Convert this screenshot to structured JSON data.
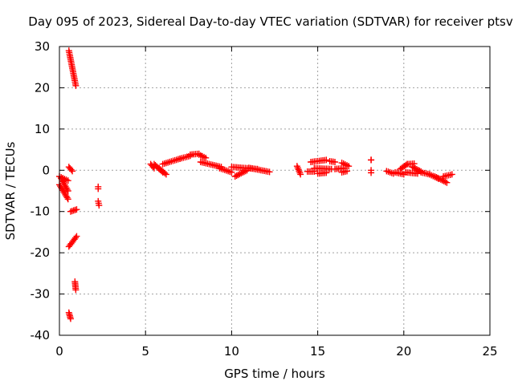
{
  "chart_data": {
    "type": "scatter",
    "title": "Day 095 of 2023, Sidereal Day-to-day VTEC variation (SDTVAR) for receiver ptsv",
    "xlabel": "GPS time / hours",
    "ylabel": "SDTVAR / TECUs",
    "xlim": [
      0,
      25
    ],
    "ylim": [
      -40,
      30
    ],
    "xticks": [
      0,
      5,
      10,
      15,
      20,
      25
    ],
    "yticks": [
      -40,
      -30,
      -20,
      -10,
      0,
      10,
      20,
      30
    ],
    "grid": true,
    "marker": "plus",
    "color": "#ff0000",
    "segments": [
      {
        "from": [
          0.55,
          29.0
        ],
        "to": [
          0.95,
          20.5
        ]
      },
      {
        "from": [
          0.0,
          -1.5
        ],
        "to": [
          0.5,
          -2.5
        ]
      },
      {
        "from": [
          0.0,
          -3.5
        ],
        "to": [
          0.5,
          -7.0
        ]
      },
      {
        "from": [
          0.1,
          -2.0
        ],
        "to": [
          0.5,
          -5.0
        ]
      },
      {
        "from": [
          0.55,
          0.8
        ],
        "to": [
          0.75,
          -0.2
        ]
      },
      {
        "from": [
          0.65,
          -10.0
        ],
        "to": [
          1.0,
          -9.5
        ]
      },
      {
        "from": [
          0.55,
          -18.5
        ],
        "to": [
          1.0,
          -16.0
        ]
      },
      {
        "from": [
          0.9,
          -27.0
        ],
        "to": [
          0.95,
          -29.0
        ]
      },
      {
        "from": [
          0.55,
          -34.5
        ],
        "to": [
          0.65,
          -36.0
        ]
      },
      {
        "from": [
          2.25,
          -4.0
        ],
        "to": [
          2.25,
          -4.5
        ]
      },
      {
        "from": [
          2.25,
          -7.5
        ],
        "to": [
          2.3,
          -8.5
        ]
      },
      {
        "from": [
          5.3,
          1.5
        ],
        "to": [
          5.5,
          0.5
        ]
      },
      {
        "from": [
          5.5,
          1.5
        ],
        "to": [
          6.0,
          -0.5
        ]
      },
      {
        "from": [
          5.8,
          0.5
        ],
        "to": [
          6.2,
          -1.0
        ]
      },
      {
        "from": [
          6.0,
          1.5
        ],
        "to": [
          7.0,
          2.8
        ]
      },
      {
        "from": [
          7.0,
          2.8
        ],
        "to": [
          7.6,
          3.5
        ]
      },
      {
        "from": [
          7.6,
          3.8
        ],
        "to": [
          8.1,
          4.0
        ]
      },
      {
        "from": [
          8.1,
          3.8
        ],
        "to": [
          8.5,
          3.0
        ]
      },
      {
        "from": [
          8.2,
          2.0
        ],
        "to": [
          9.4,
          0.8
        ]
      },
      {
        "from": [
          9.3,
          0.5
        ],
        "to": [
          10.0,
          -0.5
        ]
      },
      {
        "from": [
          10.0,
          0.8
        ],
        "to": [
          11.5,
          0.3
        ]
      },
      {
        "from": [
          10.2,
          -1.5
        ],
        "to": [
          10.9,
          0.0
        ]
      },
      {
        "from": [
          11.0,
          0.6
        ],
        "to": [
          12.2,
          -0.4
        ]
      },
      {
        "from": [
          13.8,
          1.0
        ],
        "to": [
          14.0,
          -1.0
        ]
      },
      {
        "from": [
          14.4,
          -0.3
        ],
        "to": [
          14.8,
          -0.3
        ]
      },
      {
        "from": [
          14.6,
          2.0
        ],
        "to": [
          15.5,
          2.5
        ]
      },
      {
        "from": [
          14.8,
          0.5
        ],
        "to": [
          15.8,
          0.3
        ]
      },
      {
        "from": [
          15.0,
          -0.8
        ],
        "to": [
          15.5,
          -0.6
        ]
      },
      {
        "from": [
          15.7,
          2.2
        ],
        "to": [
          16.0,
          2.0
        ]
      },
      {
        "from": [
          16.0,
          0.3
        ],
        "to": [
          16.5,
          0.5
        ]
      },
      {
        "from": [
          16.4,
          1.8
        ],
        "to": [
          16.8,
          1.0
        ]
      },
      {
        "from": [
          16.4,
          -0.5
        ],
        "to": [
          16.7,
          -0.2
        ]
      },
      {
        "from": [
          18.1,
          2.5
        ],
        "to": [
          18.1,
          2.5
        ]
      },
      {
        "from": [
          18.1,
          0.0
        ],
        "to": [
          18.1,
          -0.6
        ]
      },
      {
        "from": [
          19.0,
          -0.2
        ],
        "to": [
          19.4,
          -0.8
        ]
      },
      {
        "from": [
          19.5,
          -0.5
        ],
        "to": [
          20.0,
          -1.0
        ]
      },
      {
        "from": [
          19.8,
          0.3
        ],
        "to": [
          20.2,
          1.5
        ]
      },
      {
        "from": [
          20.2,
          1.5
        ],
        "to": [
          20.6,
          1.6
        ]
      },
      {
        "from": [
          20.1,
          -0.5
        ],
        "to": [
          20.8,
          -0.8
        ]
      },
      {
        "from": [
          20.5,
          0.8
        ],
        "to": [
          21.0,
          -0.3
        ]
      },
      {
        "from": [
          21.0,
          -0.5
        ],
        "to": [
          21.5,
          -1.0
        ]
      },
      {
        "from": [
          21.5,
          -1.0
        ],
        "to": [
          22.0,
          -2.0
        ]
      },
      {
        "from": [
          21.8,
          -1.5
        ],
        "to": [
          22.5,
          -3.0
        ]
      },
      {
        "from": [
          22.3,
          -1.5
        ],
        "to": [
          22.8,
          -1.0
        ]
      }
    ]
  }
}
